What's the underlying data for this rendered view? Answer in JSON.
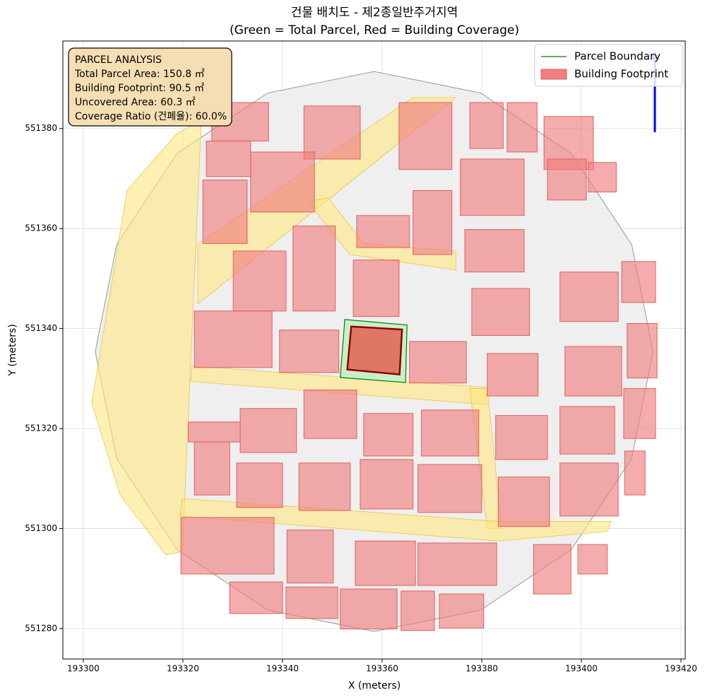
{
  "chart_data": {
    "type": "map",
    "title": "건물 배치도 - 제2종일반주거지역",
    "subtitle": "(Green = Total Parcel, Red = Building Coverage)",
    "x_label": "X (meters)",
    "y_label": "Y (meters)",
    "xlim": [
      193295.9,
      193420.85
    ],
    "ylim": [
      551273.9,
      551397.5
    ],
    "xticks": [
      193300,
      193320,
      193340,
      193360,
      193380,
      193400,
      193420
    ],
    "yticks": [
      551280,
      551300,
      551320,
      551340,
      551360,
      551380
    ],
    "grid": true,
    "legend": "upper right",
    "annotation": [
      "PARCEL ANALYSIS",
      "Total Parcel Area: 150.8 ㎡",
      "Building Footprint: 90.5 ㎡",
      "Uncovered Area: 60.3 ㎡",
      "Coverage Ratio (건폐율): 60.0%"
    ],
    "study_area": {
      "color": "#efefef",
      "x": [
        193414.4,
        193410.1,
        193398.0,
        193379.8,
        193358.4,
        193337.0,
        193318.8,
        193306.7,
        193302.4,
        193306.7,
        193318.8,
        193337.0,
        193358.4,
        193379.8,
        193398.0,
        193410.1
      ],
      "y": [
        551335.4,
        551356.8,
        551375.0,
        551387.1,
        551391.4,
        551387.1,
        551375.0,
        551356.8,
        551335.4,
        551314.0,
        551295.8,
        551283.7,
        551279.4,
        551283.7,
        551295.8,
        551314.0
      ]
    },
    "roads_color": "#ffe680",
    "roads": [
      {
        "x": [
          193301.7,
          193308.8,
          193318.7,
          193323.7,
          193319.9,
          193316.6,
          193307.4
        ],
        "y": [
          551325.1,
          551367.6,
          551378.9,
          551381.7,
          551295.4,
          551294.7,
          551306.7
        ]
      },
      {
        "x": [
          193323.0,
          193366.2,
          193374.8,
          193323.0
        ],
        "y": [
          551356.9,
          551386.2,
          551386.2,
          551344.9
        ]
      },
      {
        "x": [
          193345.0,
          193349.2,
          193356.3,
          193374.8,
          193374.8,
          193353.5
        ],
        "y": [
          551365.4,
          551366.1,
          551357.0,
          551355.5,
          551351.7,
          551354.8
        ]
      },
      {
        "x": [
          193321.8,
          193381.1,
          193380.9,
          193321.6
        ],
        "y": [
          551332.5,
          551328.2,
          551324.8,
          551329.4
        ]
      },
      {
        "x": [
          193377.6,
          193381.1,
          193384.0,
          193381.1
        ],
        "y": [
          551328.0,
          551328.0,
          551300.0,
          551300.0
        ]
      },
      {
        "x": [
          193319.9,
          193383.3,
          193406.0,
          193405.2,
          193383.3,
          193319.4
        ],
        "y": [
          551306.0,
          551301.4,
          551301.4,
          551299.4,
          551297.5,
          551302.5
        ]
      }
    ],
    "buildings_color": "#f08080",
    "buildings": [
      {
        "x": [
          193325.8,
          193337.2
        ],
        "y": [
          551377.5,
          551385.2
        ]
      },
      {
        "x": [
          193344.3,
          193355.6
        ],
        "y": [
          551373.9,
          551384.5
        ]
      },
      {
        "x": [
          193363.4,
          193374.0
        ],
        "y": [
          551371.8,
          551385.2
        ]
      },
      {
        "x": [
          193377.6,
          193384.3
        ],
        "y": [
          551376.0,
          551385.2
        ]
      },
      {
        "x": [
          193385.1,
          193391.1
        ],
        "y": [
          551375.3,
          551385.2
        ]
      },
      {
        "x": [
          193392.5,
          193402.4
        ],
        "y": [
          551371.8,
          551382.4
        ]
      },
      {
        "x": [
          193324.7,
          193333.6
        ],
        "y": [
          551370.4,
          551377.5
        ]
      },
      {
        "x": [
          193333.6,
          193346.4
        ],
        "y": [
          551363.3,
          551375.3
        ]
      },
      {
        "x": [
          193324.0,
          193332.9
        ],
        "y": [
          551357.0,
          551369.7
        ]
      },
      {
        "x": [
          193354.9,
          193365.5
        ],
        "y": [
          551356.2,
          551362.6
        ]
      },
      {
        "x": [
          193366.2,
          193374.0
        ],
        "y": [
          551354.8,
          551367.6
        ]
      },
      {
        "x": [
          193375.7,
          193388.5
        ],
        "y": [
          551362.6,
          551373.9
        ]
      },
      {
        "x": [
          193376.6,
          193388.5
        ],
        "y": [
          551351.3,
          551359.8
        ]
      },
      {
        "x": [
          193393.2,
          193401.0
        ],
        "y": [
          551365.7,
          551373.9
        ]
      },
      {
        "x": [
          193401.4,
          193407.0
        ],
        "y": [
          551367.3,
          551373.2
        ]
      },
      {
        "x": [
          193330.1,
          193340.7
        ],
        "y": [
          551343.5,
          551355.5
        ]
      },
      {
        "x": [
          193342.1,
          193350.6
        ],
        "y": [
          551343.5,
          551360.5
        ]
      },
      {
        "x": [
          193354.2,
          193363.4
        ],
        "y": [
          551342.4,
          551353.7
        ]
      },
      {
        "x": [
          193322.3,
          193337.9
        ],
        "y": [
          551332.2,
          551343.5
        ]
      },
      {
        "x": [
          193339.4,
          193351.3
        ],
        "y": [
          551331.2,
          551339.7
        ]
      },
      {
        "x": [
          193365.5,
          193376.9
        ],
        "y": [
          551329.1,
          551337.4
        ]
      },
      {
        "x": [
          193378.0,
          193389.6
        ],
        "y": [
          551338.6,
          551348.0
        ]
      },
      {
        "x": [
          193381.1,
          193391.3
        ],
        "y": [
          551326.5,
          551335.0
        ]
      },
      {
        "x": [
          193395.7,
          193407.4
        ],
        "y": [
          551341.4,
          551351.3
        ]
      },
      {
        "x": [
          193408.1,
          193414.9
        ],
        "y": [
          551345.2,
          551353.4
        ]
      },
      {
        "x": [
          193396.7,
          193408.1
        ],
        "y": [
          551326.5,
          551336.4
        ]
      },
      {
        "x": [
          193409.2,
          193415.2
        ],
        "y": [
          551330.1,
          551341.0
        ]
      },
      {
        "x": [
          193331.5,
          193342.8
        ],
        "y": [
          551315.2,
          551324.0
        ]
      },
      {
        "x": [
          193344.3,
          193354.9
        ],
        "y": [
          551318.0,
          551327.7
        ]
      },
      {
        "x": [
          193356.3,
          193366.2
        ],
        "y": [
          551314.5,
          551323.0
        ]
      },
      {
        "x": [
          193367.9,
          193379.4
        ],
        "y": [
          551314.5,
          551323.7
        ]
      },
      {
        "x": [
          193321.1,
          193331.5
        ],
        "y": [
          551317.3,
          551321.3
        ]
      },
      {
        "x": [
          193322.3,
          193329.4
        ],
        "y": [
          551306.7,
          551317.3
        ]
      },
      {
        "x": [
          193330.8,
          193340.0
        ],
        "y": [
          551304.2,
          551313.1
        ]
      },
      {
        "x": [
          193343.3,
          193353.6
        ],
        "y": [
          551303.6,
          551313.1
        ]
      },
      {
        "x": [
          193355.6,
          193366.2
        ],
        "y": [
          551303.9,
          551313.8
        ]
      },
      {
        "x": [
          193367.2,
          193380.0
        ],
        "y": [
          551303.2,
          551312.8
        ]
      },
      {
        "x": [
          193382.8,
          193393.2
        ],
        "y": [
          551313.8,
          551322.6
        ]
      },
      {
        "x": [
          193395.7,
          193406.7
        ],
        "y": [
          551314.9,
          551324.4
        ]
      },
      {
        "x": [
          193408.5,
          193414.9
        ],
        "y": [
          551318.0,
          551328.0
        ]
      },
      {
        "x": [
          193383.3,
          193393.6
        ],
        "y": [
          551300.4,
          551310.3
        ]
      },
      {
        "x": [
          193395.7,
          193407.4
        ],
        "y": [
          551302.5,
          551313.1
        ]
      },
      {
        "x": [
          193408.7,
          193412.8
        ],
        "y": [
          551306.7,
          551315.5
        ]
      },
      {
        "x": [
          193319.6,
          193338.3
        ],
        "y": [
          551290.9,
          551302.2
        ]
      },
      {
        "x": [
          193340.9,
          193350.2
        ],
        "y": [
          551289.1,
          551299.7
        ]
      },
      {
        "x": [
          193354.6,
          193366.7
        ],
        "y": [
          551288.6,
          551297.5
        ]
      },
      {
        "x": [
          193367.2,
          193383.0
        ],
        "y": [
          551288.6,
          551297.1
        ]
      },
      {
        "x": [
          193390.4,
          193397.9
        ],
        "y": [
          551286.9,
          551296.8
        ]
      },
      {
        "x": [
          193399.3,
          193405.2
        ],
        "y": [
          551290.9,
          551296.8
        ]
      },
      {
        "x": [
          193329.4,
          193340.0
        ],
        "y": [
          551283.0,
          551289.3
        ]
      },
      {
        "x": [
          193340.7,
          193351.1
        ],
        "y": [
          551282.0,
          551288.3
        ]
      },
      {
        "x": [
          193351.6,
          193363.0
        ],
        "y": [
          551279.9,
          551287.9
        ]
      },
      {
        "x": [
          193363.8,
          193370.5
        ],
        "y": [
          551279.6,
          551287.5
        ]
      },
      {
        "x": [
          193371.5,
          193380.4
        ],
        "y": [
          551280.1,
          551286.9
        ]
      }
    ],
    "series": [
      {
        "name": "Parcel Boundary",
        "color": "#008000",
        "fill": "#c8f0c8",
        "x": [
          193352.5,
          193365.0,
          193364.7,
          193351.6
        ],
        "y": [
          551341.8,
          551340.7,
          551329.2,
          551330.2
        ]
      },
      {
        "name": "Building Footprint",
        "color": "#8b0000",
        "fill": "#e07060",
        "x": [
          193353.8,
          193364.0,
          193363.5,
          193353.0
        ],
        "y": [
          551340.4,
          551339.8,
          551330.8,
          551331.8
        ]
      }
    ]
  }
}
